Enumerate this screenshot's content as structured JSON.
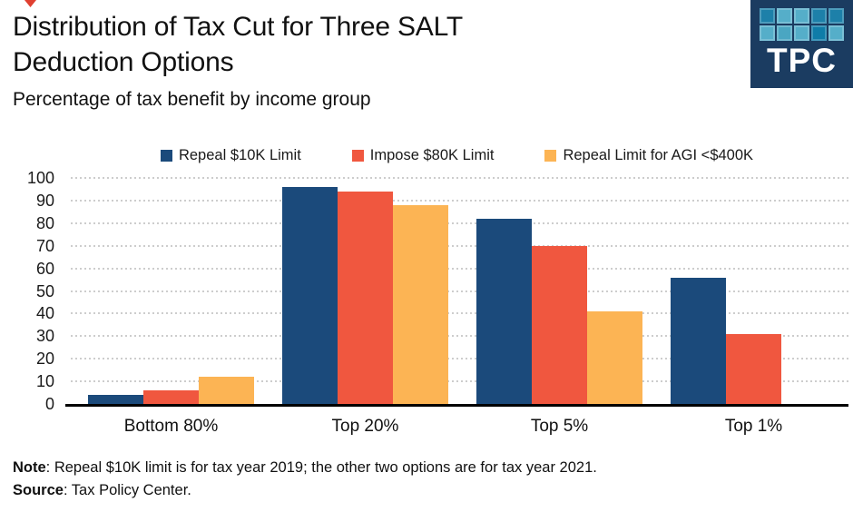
{
  "header": {
    "title_line1": "Distribution of Tax Cut for Three SALT",
    "title_line2": "Deduction Options",
    "subtitle": "Percentage of tax benefit by income group"
  },
  "logo": {
    "text": "TPC",
    "bg_color": "#1b3c61",
    "squares": [
      "#1d80a9",
      "#55aec9",
      "#55aec9",
      "#1d80a9",
      "#1d80a9",
      "#55aec9",
      "#4aa6c2",
      "#55aec9",
      "#0f7ca8",
      "#55aec9"
    ]
  },
  "decoration": {
    "corner_mark_color": "#e04030"
  },
  "chart_data": {
    "type": "bar",
    "title": "Distribution of Tax Cut for Three SALT Deduction Options",
    "subtitle": "Percentage of tax benefit by income group",
    "categories": [
      "Bottom 80%",
      "Top 20%",
      "Top 5%",
      "Top 1%"
    ],
    "series": [
      {
        "name": "Repeal $10K Limit",
        "color": "#1b4a7b",
        "values": [
          4,
          96,
          82,
          56
        ]
      },
      {
        "name": "Impose $80K Limit",
        "color": "#f0573f",
        "values": [
          6,
          94,
          70,
          31
        ]
      },
      {
        "name": "Repeal Limit for AGI <$400K",
        "color": "#fcb454",
        "values": [
          12,
          88,
          41,
          0
        ]
      }
    ],
    "xlabel": "",
    "ylabel": "",
    "ylim": [
      0,
      100
    ],
    "ytick_interval": 10,
    "ytick_labels": [
      "0",
      "10",
      "20",
      "30",
      "40",
      "50",
      "60",
      "70",
      "80",
      "90",
      "100"
    ],
    "grid": "horizontal-dotted",
    "gridline_color": "#cdcdcd",
    "axis_color": "#000000",
    "legend_position": "top"
  },
  "footer": {
    "note_label": "Note",
    "note_text": ": Repeal $10K limit is for tax year 2019; the other two options are for tax year 2021.",
    "source_label": "Source",
    "source_text": ": Tax Policy Center."
  }
}
